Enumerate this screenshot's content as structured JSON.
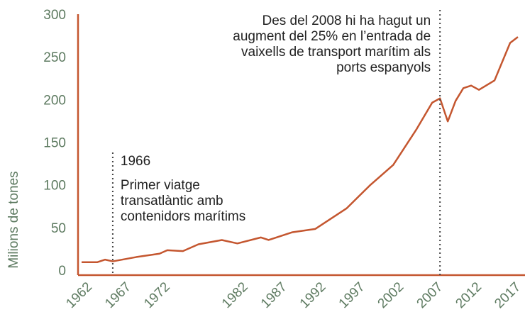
{
  "chart_data": {
    "type": "line",
    "y_label": "Milions de tones",
    "x": [
      1962,
      1964,
      1965,
      1966,
      1969,
      1972,
      1973,
      1975,
      1977,
      1980,
      1982,
      1985,
      1986,
      1989,
      1992,
      1996,
      1999,
      2002,
      2005,
      2007,
      2008,
      2009,
      2010,
      2011,
      2012,
      2013,
      2015,
      2017,
      2018
    ],
    "series": [
      {
        "name": "Milions de tones",
        "color": "#c4562f",
        "values": [
          11,
          11,
          14,
          12,
          17,
          21,
          25,
          24,
          32,
          37,
          33,
          40,
          37,
          46,
          50,
          74,
          101,
          125,
          167,
          198,
          203,
          176,
          200,
          215,
          218,
          213,
          224,
          268,
          275
        ]
      }
    ],
    "xlim": [
      1962,
      2018
    ],
    "xticks": [
      1962,
      1967,
      1972,
      1982,
      1987,
      1992,
      1997,
      2002,
      2007,
      2012,
      2017
    ],
    "ylim": [
      0,
      300
    ],
    "yticks": [
      0,
      50,
      100,
      150,
      200,
      250,
      300
    ],
    "grid": false,
    "annotations": [
      {
        "x": 1966,
        "lines": [
          "1966",
          "Primer viatge",
          "transatlàntic amb",
          "contenidors marítims"
        ]
      },
      {
        "x": 2008,
        "lines": [
          "Des del 2008 hi ha hagut un",
          "augment del 25% en l’entrada de",
          "vaixells de transport marítim als",
          "ports espanyols"
        ]
      }
    ]
  }
}
